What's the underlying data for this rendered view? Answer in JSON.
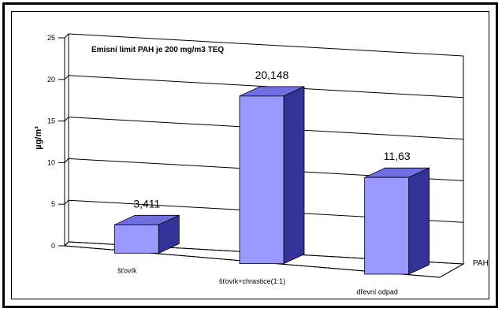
{
  "chart_data": {
    "type": "bar",
    "style": "3d-column",
    "annotation": "Emisní limit PAH je 200 mg/m3 TEQ",
    "ylabel": "µg/m³",
    "ylim": [
      0,
      25
    ],
    "y_ticks": [
      "0",
      "5",
      "10",
      "15",
      "20",
      "25"
    ],
    "categories": [
      "šťovík",
      "šťovík+chrastice(1:1)",
      "dřevní odpad"
    ],
    "series": [
      {
        "name": "PAH",
        "values": [
          3.411,
          20.148,
          11.63
        ],
        "labels": [
          "3,411",
          "20,148",
          "11,63"
        ]
      }
    ],
    "grid": true,
    "colors": {
      "front": "#9999ff",
      "top": "#6f6fe3",
      "side": "#333399",
      "grid": "#000000"
    }
  }
}
